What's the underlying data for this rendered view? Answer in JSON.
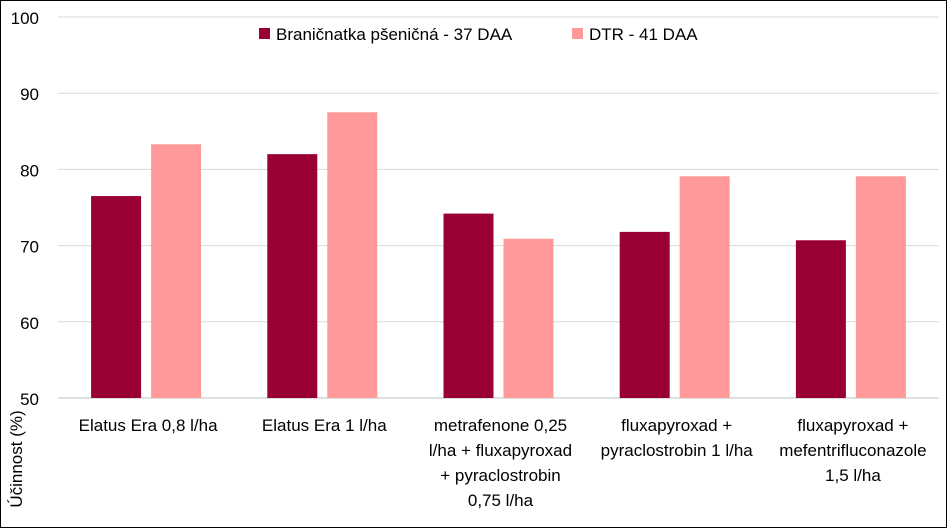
{
  "chart_data": {
    "type": "bar",
    "title": "",
    "xlabel": "",
    "ylabel": "Účinnost (%)",
    "ylim": [
      50,
      100
    ],
    "yticks": [
      50,
      60,
      70,
      80,
      90,
      100
    ],
    "grid": true,
    "legend_position": "top",
    "categories": [
      [
        "Elatus Era 0,8 l/ha"
      ],
      [
        "Elatus Era 1 l/ha"
      ],
      [
        "metrafenone 0,25",
        "l/ha + fluxapyroxad",
        "+ pyraclostrobin",
        "0,75 l/ha"
      ],
      [
        "fluxapyroxad +",
        "pyraclostrobin 1 l/ha"
      ],
      [
        "fluxapyroxad +",
        "mefentrifluconazole",
        "1,5 l/ha"
      ]
    ],
    "series": [
      {
        "name": "Braničnatka pšeničná - 37 DAA",
        "color": "#990033",
        "values": [
          76.5,
          82.0,
          74.2,
          71.8,
          70.7
        ]
      },
      {
        "name": "DTR - 41 DAA",
        "color": "#FF9999",
        "values": [
          83.3,
          87.5,
          70.9,
          79.1,
          79.1
        ]
      }
    ]
  }
}
